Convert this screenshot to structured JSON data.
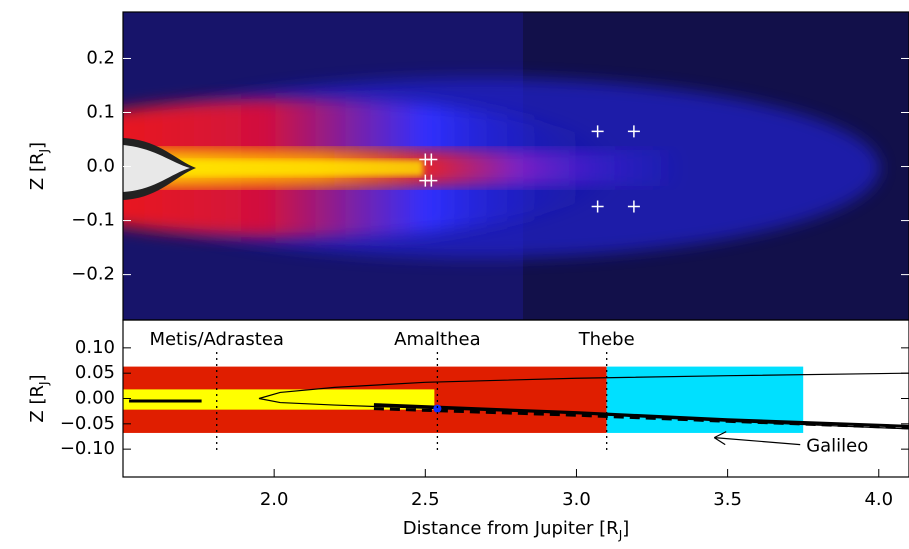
{
  "chart_data": [
    {
      "type": "image",
      "ylabel": "Z [R",
      "ylabel_sub": "J",
      "ylabel_end": "]",
      "xlim": [
        1.5,
        4.1
      ],
      "ylim": [
        -0.284,
        0.286
      ],
      "yticks": [
        0.2,
        0.1,
        {
          "value": 0,
          "label": "0.0"
        },
        {
          "value": -0.1,
          "label": "−0.1"
        },
        {
          "value": -0.2,
          "label": "−0.2"
        }
      ],
      "markers": {
        "color": "#ffffff",
        "x": [
          2.5,
          2.52,
          2.5,
          2.52,
          3.07,
          3.19,
          3.07,
          3.19
        ],
        "values": [
          0.013,
          0.013,
          -0.026,
          -0.026,
          0.065,
          0.065,
          -0.074,
          -0.074
        ]
      }
    },
    {
      "type": "schematic",
      "xlabel": "Distance from Jupiter [R",
      "xlabel_sub": "J",
      "xlabel_end": "]",
      "ylabel": "Z [R",
      "ylabel_sub": "J",
      "ylabel_end": "]",
      "xlim": [
        1.5,
        4.1
      ],
      "ylim": [
        -0.155,
        0.155
      ],
      "xticks": [
        {
          "value": 2,
          "label": "2.0"
        },
        2.5,
        {
          "value": 3,
          "label": "3.0"
        },
        3.5,
        {
          "value": 4,
          "label": "4.0"
        }
      ],
      "yticks": [
        {
          "value": 0.1,
          "label": "0.10"
        },
        0.05,
        {
          "value": 0,
          "label": "0.00"
        },
        {
          "value": -0.05,
          "label": "−0.05"
        },
        {
          "value": -0.1,
          "label": "−0.10"
        }
      ],
      "moons": {
        "names": [
          "Metis/Adrastea",
          "Amalthea",
          "Thebe"
        ],
        "x": [
          1.81,
          2.54,
          3.1
        ]
      },
      "regions": [
        {
          "color": "#e01e00",
          "x": [
            1.5,
            3.1
          ],
          "z": [
            -0.068,
            0.063
          ]
        },
        {
          "color": "#ffff00",
          "x": [
            1.5,
            2.53
          ],
          "z": [
            -0.022,
            0.018
          ]
        },
        {
          "color": "#00e0ff",
          "x": [
            3.1,
            3.75
          ],
          "z": [
            -0.068,
            0.063
          ]
        }
      ],
      "series": [
        {
          "color": "#000000",
          "style": "thin",
          "x": [
            4.1,
            3.5,
            3.0,
            2.5,
            2.2,
            2.02,
            1.95,
            2.02,
            2.2,
            2.54,
            3.0,
            3.5,
            4.1
          ],
          "values": [
            0.05,
            0.045,
            0.04,
            0.032,
            0.022,
            0.012,
            0.0,
            -0.008,
            -0.013,
            -0.02,
            -0.03,
            -0.045,
            -0.06
          ]
        },
        {
          "color": "#000000",
          "style": "thick",
          "x": [
            2.33,
            3.0,
            3.5,
            4.1
          ],
          "values": [
            -0.012,
            -0.028,
            -0.042,
            -0.055
          ]
        },
        {
          "color": "#000000",
          "style": "dashed",
          "x": [
            2.33,
            3.0,
            3.5,
            4.1
          ],
          "values": [
            -0.02,
            -0.033,
            -0.045,
            -0.058
          ]
        },
        {
          "color": "#000000",
          "style": "thick",
          "x": [
            1.52,
            1.76
          ],
          "values": [
            -0.005,
            -0.005
          ]
        }
      ],
      "point": {
        "color": "#1030ff",
        "x": 2.54,
        "value": -0.02
      },
      "annotation": {
        "text": "Galileo",
        "x": 3.76,
        "value": -0.095
      }
    }
  ]
}
